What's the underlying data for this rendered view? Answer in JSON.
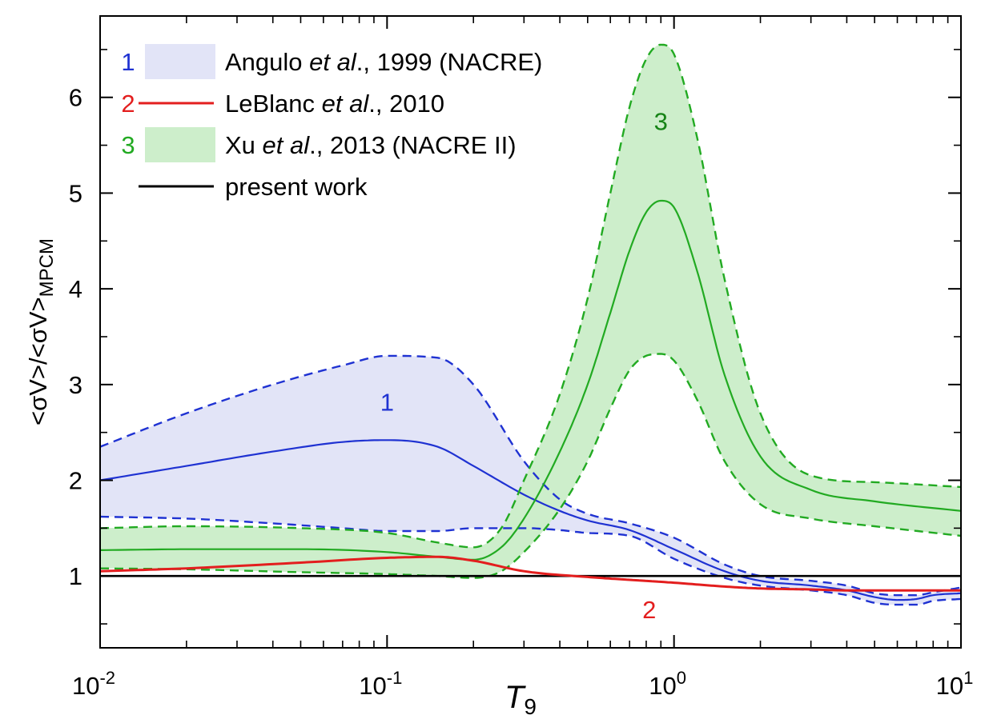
{
  "chart_data": {
    "type": "line",
    "xscale": "log",
    "xlim": [
      0.01,
      10
    ],
    "ylim": [
      0.25,
      6.85
    ],
    "xlabel": {
      "main": "T",
      "sub": "9"
    },
    "ylabel": {
      "main": "<σV>/<σV>",
      "sub": "MPCM"
    },
    "x_ticks": [
      {
        "value": 0.01,
        "base": "10",
        "exp": "-2"
      },
      {
        "value": 0.1,
        "base": "10",
        "exp": "-1"
      },
      {
        "value": 1,
        "base": "10",
        "exp": "0"
      },
      {
        "value": 10,
        "base": "10",
        "exp": "1"
      }
    ],
    "y_ticks": [
      1,
      2,
      3,
      4,
      5,
      6
    ],
    "colors": {
      "nacre": "#1f32d2",
      "nacre_fill": "#e2e4f7",
      "leblanc": "#e31e1e",
      "nacre2": "#22aa22",
      "nacre2_fill": "#cdeecb",
      "present": "#000000",
      "label3": "#168416"
    },
    "legend": [
      {
        "number": "1",
        "color": "#1f32d2",
        "symbol": "band",
        "fill": "#e2e4f7",
        "text_before": "Angulo ",
        "italic": "et al",
        "text_after": "., 1999 (NACRE)"
      },
      {
        "number": "2",
        "color": "#e31e1e",
        "symbol": "line",
        "text_before": "LeBlanc ",
        "italic": "et al",
        "text_after": "., 2010"
      },
      {
        "number": "3",
        "color": "#22aa22",
        "symbol": "band",
        "fill": "#cdeecb",
        "text_before": "Xu ",
        "italic": "et al",
        "text_after": "., 2013 (NACRE II)"
      },
      {
        "number": "",
        "color": "#000000",
        "symbol": "line",
        "text_before": "present work",
        "italic": "",
        "text_after": ""
      }
    ],
    "curve_labels": [
      {
        "text": "1",
        "x": 0.1,
        "y": 2.82,
        "color": "#1f32d2"
      },
      {
        "text": "2",
        "x": 0.82,
        "y": 0.65,
        "color": "#e31e1e"
      },
      {
        "text": "3",
        "x": 0.9,
        "y": 5.75,
        "color": "#168416"
      }
    ],
    "series": [
      {
        "name": "Angulo et al., 1999 (NACRE)",
        "x": [
          0.01,
          0.02,
          0.04,
          0.07,
          0.1,
          0.15,
          0.2,
          0.3,
          0.4,
          0.5,
          0.7,
          1.0,
          1.5,
          2.0,
          3.0,
          4.0,
          5.0,
          6.0,
          7.0,
          8.0,
          10.0
        ],
        "central": [
          2.0,
          2.15,
          2.3,
          2.4,
          2.42,
          2.35,
          2.15,
          1.85,
          1.68,
          1.58,
          1.48,
          1.28,
          1.05,
          0.95,
          0.9,
          0.85,
          0.78,
          0.75,
          0.76,
          0.8,
          0.82
        ],
        "upper": [
          2.35,
          2.7,
          3.0,
          3.2,
          3.3,
          3.28,
          3.0,
          2.2,
          1.8,
          1.65,
          1.55,
          1.4,
          1.12,
          1.0,
          0.95,
          0.9,
          0.82,
          0.8,
          0.8,
          0.83,
          0.88
        ],
        "lower": [
          1.62,
          1.6,
          1.55,
          1.5,
          1.47,
          1.47,
          1.5,
          1.5,
          1.48,
          1.45,
          1.42,
          1.18,
          0.98,
          0.9,
          0.85,
          0.8,
          0.72,
          0.7,
          0.7,
          0.74,
          0.76
        ]
      },
      {
        "name": "LeBlanc et al., 2010",
        "x": [
          0.01,
          0.02,
          0.05,
          0.1,
          0.15,
          0.2,
          0.3,
          0.5,
          0.7,
          1.0,
          1.5,
          2.0,
          3.0,
          4.0,
          5.0,
          7.0,
          10.0
        ],
        "values": [
          1.05,
          1.08,
          1.14,
          1.19,
          1.2,
          1.16,
          1.05,
          0.99,
          0.96,
          0.93,
          0.89,
          0.87,
          0.86,
          0.85,
          0.85,
          0.85,
          0.85
        ]
      },
      {
        "name": "Xu et al., 2013 (NACRE II)",
        "x": [
          0.01,
          0.02,
          0.05,
          0.1,
          0.15,
          0.2,
          0.25,
          0.3,
          0.4,
          0.5,
          0.6,
          0.7,
          0.8,
          0.9,
          1.0,
          1.2,
          1.5,
          2.0,
          3.0,
          5.0,
          10.0
        ],
        "central": [
          1.27,
          1.28,
          1.28,
          1.25,
          1.2,
          1.17,
          1.3,
          1.6,
          2.3,
          3.0,
          3.75,
          4.4,
          4.8,
          4.92,
          4.85,
          4.2,
          3.1,
          2.25,
          1.9,
          1.78,
          1.68
        ],
        "upper": [
          1.5,
          1.52,
          1.5,
          1.45,
          1.35,
          1.3,
          1.5,
          2.0,
          2.9,
          3.9,
          5.0,
          5.9,
          6.4,
          6.55,
          6.45,
          5.6,
          4.1,
          2.7,
          2.05,
          1.98,
          1.93
        ],
        "lower": [
          1.08,
          1.07,
          1.04,
          1.02,
          1.0,
          0.98,
          1.05,
          1.25,
          1.7,
          2.2,
          2.75,
          3.15,
          3.3,
          3.32,
          3.25,
          2.85,
          2.2,
          1.75,
          1.6,
          1.52,
          1.42
        ]
      },
      {
        "name": "present work",
        "x": [
          0.01,
          10.0
        ],
        "values": [
          1.0,
          1.0
        ]
      }
    ]
  }
}
